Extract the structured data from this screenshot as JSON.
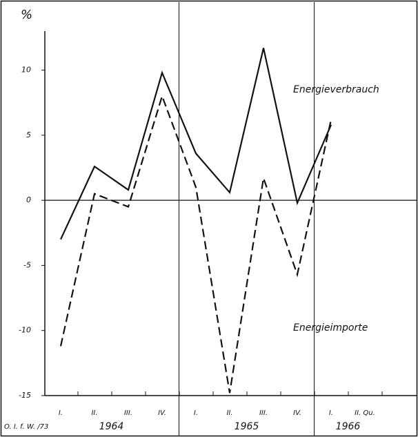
{
  "chart_data": {
    "type": "line",
    "ylabel": "%",
    "categories": [
      "I.",
      "II.",
      "III.",
      "IV.",
      "I.",
      "II.",
      "III.",
      "IV.",
      "I.",
      "II. Qu."
    ],
    "groups": [
      "1964",
      "1965",
      "1966"
    ],
    "series": [
      {
        "name": "Energieverbrauch",
        "color": "#111111",
        "style": "solid",
        "values": [
          -3,
          2.6,
          0.8,
          9.8,
          3.6,
          0.6,
          11.7,
          -0.2,
          5.8,
          null
        ]
      },
      {
        "name": "Energieimporte",
        "color": "#111111",
        "style": "dashed",
        "values": [
          -11.2,
          0.5,
          -0.5,
          8,
          1,
          -14.8,
          1.7,
          -5.7,
          6.2,
          null
        ]
      }
    ],
    "ylim": [
      -15,
      13
    ],
    "yticks": [
      -15,
      -10,
      -5,
      0,
      5,
      10
    ],
    "footnote": "O. I. f. W. /73"
  }
}
